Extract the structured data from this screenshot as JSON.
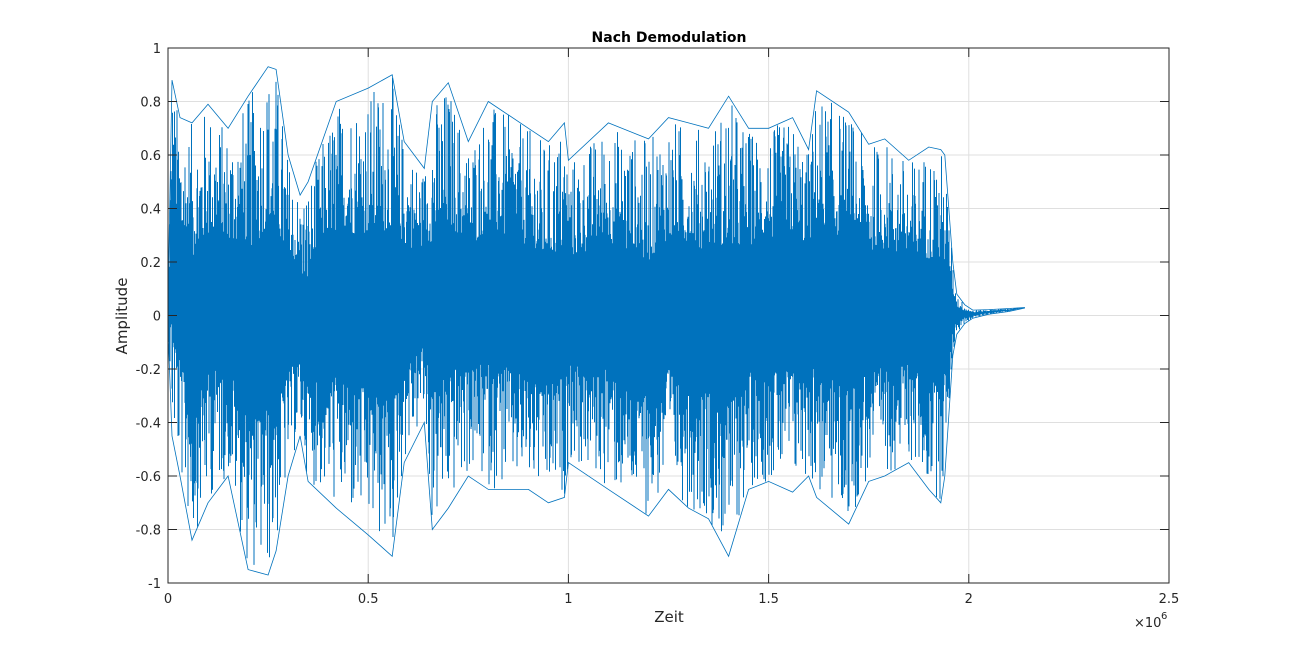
{
  "chart_data": {
    "type": "line",
    "title": "Nach Demodulation",
    "xlabel": "Zeit",
    "ylabel": "Amplitude",
    "xlim": [
      0,
      2500000
    ],
    "ylim": [
      -1,
      1
    ],
    "x_tick_labels": [
      "0",
      "0.5",
      "1",
      "1.5",
      "2",
      "2.5"
    ],
    "x_tick_values": [
      0,
      500000,
      1000000,
      1500000,
      2000000,
      2500000
    ],
    "x_exponent": {
      "base": "×10",
      "power": "6"
    },
    "y_tick_labels": [
      "-1",
      "-0.8",
      "-0.6",
      "-0.4",
      "-0.2",
      "0",
      "0.2",
      "0.4",
      "0.6",
      "0.8",
      "1"
    ],
    "y_tick_values": [
      -1,
      -0.8,
      -0.6,
      -0.4,
      -0.2,
      0,
      0.2,
      0.4,
      0.6,
      0.8,
      1
    ],
    "grid": true,
    "series": [
      {
        "color": "#0072bd",
        "x_start": 0,
        "x_end": 2140000,
        "envelope_x": [
          0,
          10000,
          30000,
          60000,
          100000,
          150000,
          200000,
          250000,
          270000,
          300000,
          330000,
          350000,
          420000,
          500000,
          560000,
          590000,
          640000,
          660000,
          700000,
          750000,
          800000,
          900000,
          950000,
          990000,
          1000000,
          1100000,
          1200000,
          1250000,
          1300000,
          1350000,
          1400000,
          1450000,
          1500000,
          1560000,
          1600000,
          1620000,
          1700000,
          1750000,
          1790000,
          1850000,
          1900000,
          1930000,
          1940000,
          1960000,
          1970000,
          1990000,
          2010000,
          2050000,
          2100000,
          2140000
        ],
        "envelope_max": [
          0.05,
          0.88,
          0.74,
          0.72,
          0.79,
          0.7,
          0.82,
          0.93,
          0.92,
          0.6,
          0.45,
          0.5,
          0.8,
          0.85,
          0.9,
          0.65,
          0.55,
          0.8,
          0.87,
          0.65,
          0.8,
          0.7,
          0.65,
          0.72,
          0.58,
          0.72,
          0.66,
          0.74,
          0.72,
          0.7,
          0.82,
          0.7,
          0.7,
          0.74,
          0.62,
          0.84,
          0.76,
          0.64,
          0.66,
          0.58,
          0.63,
          0.62,
          0.6,
          0.2,
          0.08,
          0.04,
          0.02,
          0.022,
          0.026,
          0.03
        ],
        "envelope_min": [
          -0.05,
          -0.45,
          -0.6,
          -0.84,
          -0.7,
          -0.6,
          -0.95,
          -0.97,
          -0.88,
          -0.6,
          -0.45,
          -0.62,
          -0.72,
          -0.82,
          -0.9,
          -0.55,
          -0.4,
          -0.8,
          -0.72,
          -0.6,
          -0.65,
          -0.65,
          -0.7,
          -0.68,
          -0.55,
          -0.65,
          -0.75,
          -0.65,
          -0.72,
          -0.76,
          -0.9,
          -0.65,
          -0.62,
          -0.66,
          -0.6,
          -0.68,
          -0.78,
          -0.62,
          -0.6,
          -0.55,
          -0.65,
          -0.7,
          -0.6,
          -0.15,
          -0.07,
          -0.03,
          -0.01,
          0.005,
          0.015,
          0.028
        ]
      }
    ]
  }
}
